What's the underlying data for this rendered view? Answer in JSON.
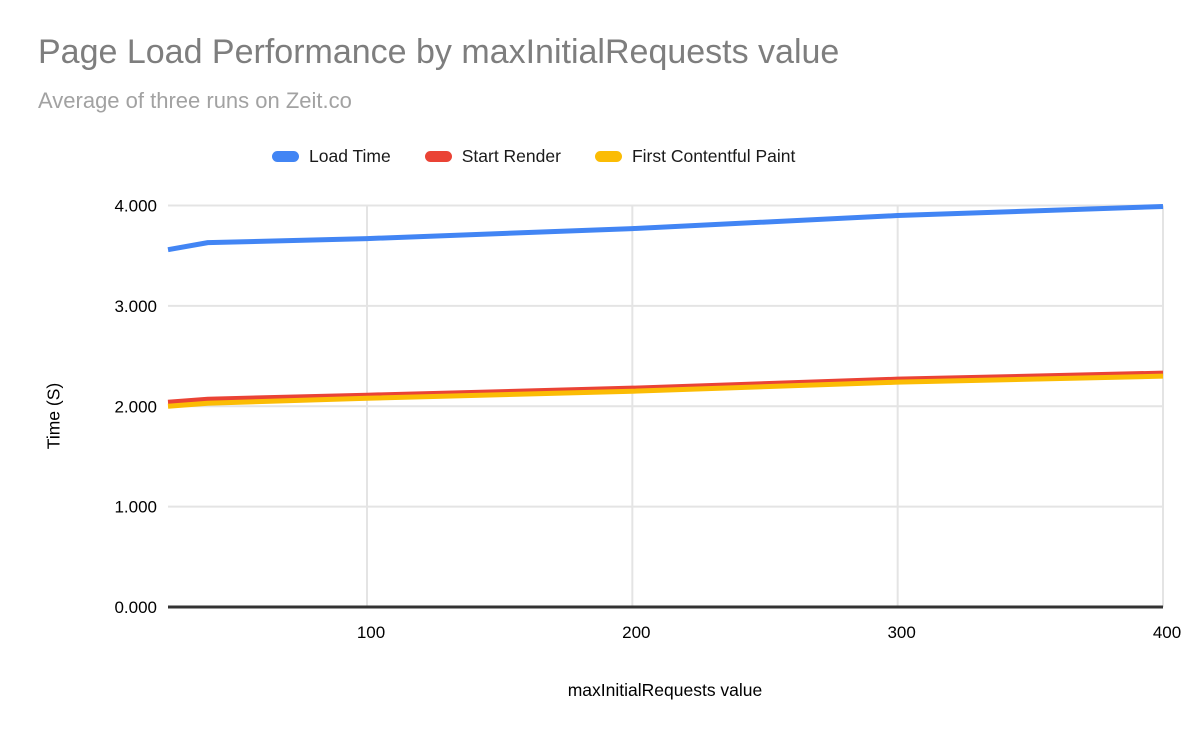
{
  "title": "Page Load Performance by maxInitialRequests value",
  "subtitle": "Average of three runs on Zeit.co",
  "colors": {
    "title_text": "#7e7e7e",
    "subtitle_text": "#a2a2a2",
    "grid": "#e4e4e4",
    "axis_line": "#333333",
    "tick_text": "#000000",
    "load_time": "#4285F4",
    "start_render": "#EA4335",
    "first_contentful_paint": "#FBBC04"
  },
  "legend": {
    "items": [
      {
        "label": "Load Time",
        "color": "#4285F4"
      },
      {
        "label": "Start Render",
        "color": "#EA4335"
      },
      {
        "label": "First Contentful Paint",
        "color": "#FBBC04"
      }
    ]
  },
  "chart_data": {
    "type": "line",
    "title": "Page Load Performance by maxInitialRequests value",
    "subtitle": "Average of three runs on Zeit.co",
    "xlabel": "maxInitialRequests value",
    "ylabel": "Time (S)",
    "x": [
      25,
      40,
      100,
      200,
      300,
      400
    ],
    "series": [
      {
        "name": "Load Time",
        "color": "#4285F4",
        "values": [
          3.56,
          3.63,
          3.67,
          3.77,
          3.9,
          3.99
        ]
      },
      {
        "name": "Start Render",
        "color": "#EA4335",
        "values": [
          2.04,
          2.07,
          2.11,
          2.18,
          2.27,
          2.33
        ]
      },
      {
        "name": "First Contentful Paint",
        "color": "#FBBC04",
        "values": [
          2.0,
          2.03,
          2.08,
          2.15,
          2.24,
          2.3
        ]
      }
    ],
    "xlim": [
      25,
      400
    ],
    "ylim": [
      0,
      4
    ],
    "x_ticks": [
      100,
      200,
      300,
      400
    ],
    "y_ticks": [
      "0.000",
      "1.000",
      "2.000",
      "3.000",
      "4.000"
    ],
    "grid": true,
    "legend_position": "top"
  }
}
